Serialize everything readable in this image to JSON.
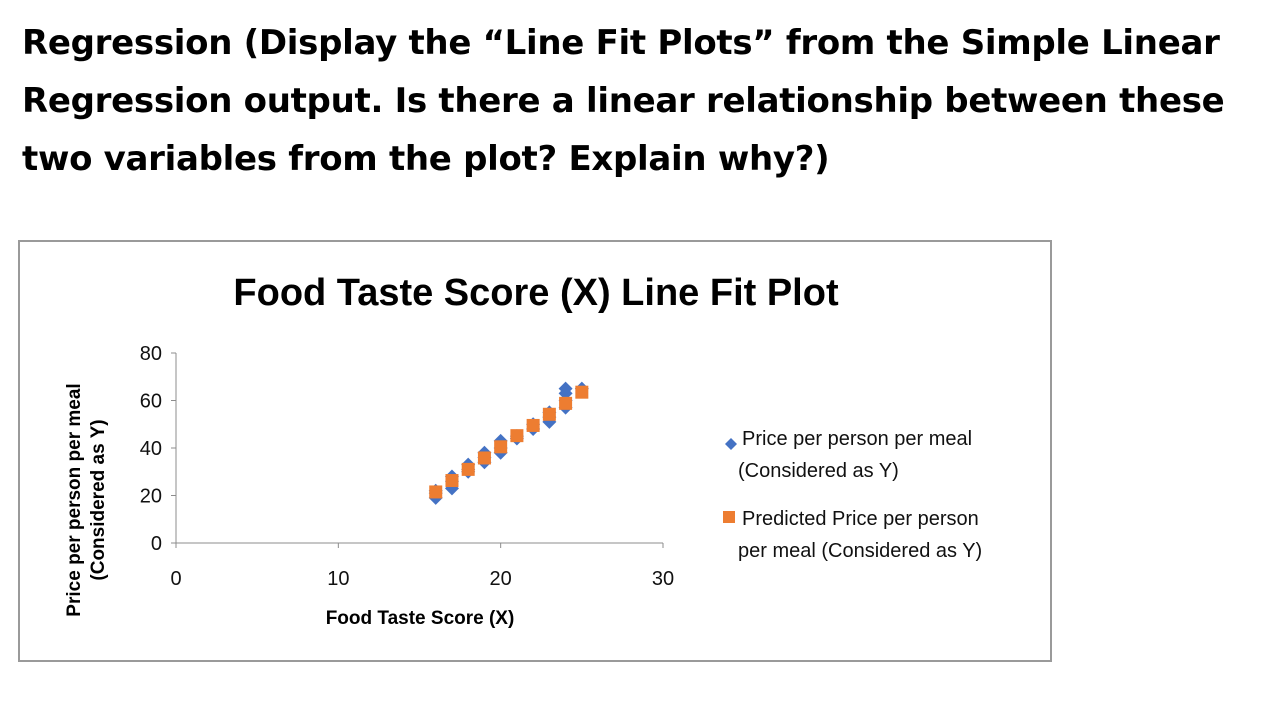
{
  "question": {
    "lines": [
      "Regression (Display the “Line Fit Plots” from the Simple Linear",
      "Regression output. Is there a linear relationship between these",
      "two variables from the plot? Explain why?)"
    ]
  },
  "chart_data": {
    "type": "scatter",
    "title": "Food Taste Score (X) Line Fit  Plot",
    "xlabel": "Food Taste Score (X)",
    "ylabel_lines": [
      "Price per person per meal",
      "(Considered as Y)"
    ],
    "xlim": [
      0,
      30
    ],
    "ylim": [
      0,
      80
    ],
    "xticks": [
      0,
      10,
      20,
      30
    ],
    "yticks": [
      0,
      20,
      40,
      60,
      80
    ],
    "grid": false,
    "legend_position": "right",
    "series": [
      {
        "legend_lines": [
          "Price per person per meal",
          "(Considered as Y)"
        ],
        "marker": "diamond",
        "color": "#4472C4",
        "points": [
          [
            16,
            19
          ],
          [
            16,
            21
          ],
          [
            16,
            22
          ],
          [
            17,
            23
          ],
          [
            17,
            26
          ],
          [
            17,
            28
          ],
          [
            18,
            30
          ],
          [
            18,
            31
          ],
          [
            18,
            33
          ],
          [
            19,
            34
          ],
          [
            19,
            36
          ],
          [
            19,
            38
          ],
          [
            20,
            38
          ],
          [
            20,
            40
          ],
          [
            20,
            43
          ],
          [
            21,
            44
          ],
          [
            21,
            45
          ],
          [
            22,
            48
          ],
          [
            22,
            50
          ],
          [
            23,
            51
          ],
          [
            23,
            53
          ],
          [
            23,
            55
          ],
          [
            24,
            57
          ],
          [
            24,
            60
          ],
          [
            24,
            63
          ],
          [
            24,
            65
          ],
          [
            25,
            65
          ]
        ]
      },
      {
        "legend_lines": [
          "Predicted Price per person",
          "per meal (Considered as Y)"
        ],
        "marker": "square",
        "color": "#ED7D31",
        "points": [
          [
            16,
            21.5
          ],
          [
            17,
            26.3
          ],
          [
            18,
            31.0
          ],
          [
            19,
            35.8
          ],
          [
            20,
            40.5
          ],
          [
            21,
            45.2
          ],
          [
            22,
            49.5
          ],
          [
            23,
            54.2
          ],
          [
            24,
            58.8
          ],
          [
            25,
            63.5
          ]
        ]
      }
    ]
  }
}
